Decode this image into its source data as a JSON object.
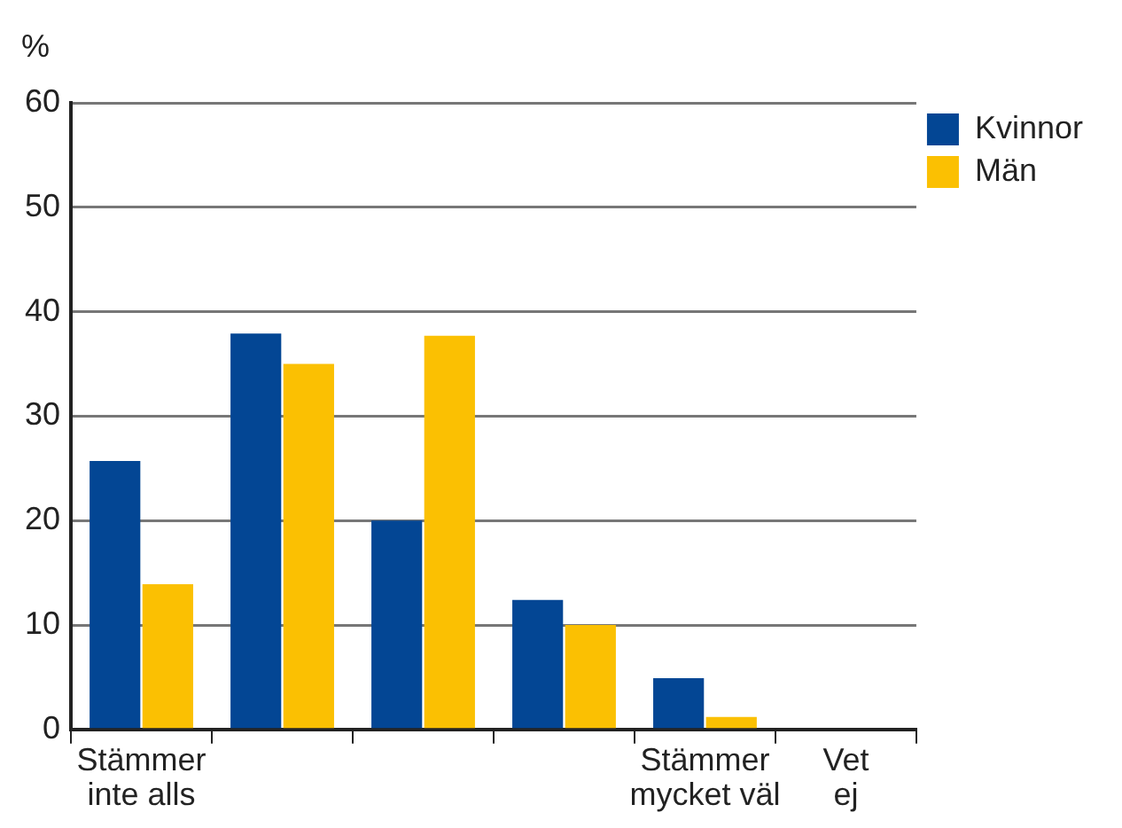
{
  "chart_data": {
    "type": "bar",
    "ylabel": "%",
    "categories": [
      "Stämmer inte alls",
      null,
      null,
      null,
      "Stämmer mycket väl",
      "Vet ej"
    ],
    "series": [
      {
        "name": "Kvinnor",
        "color": "#034694",
        "values": [
          25.7,
          37.9,
          20.0,
          12.4,
          4.9,
          0
        ]
      },
      {
        "name": "Män",
        "color": "#fbc002",
        "values": [
          13.9,
          35.0,
          37.7,
          10.0,
          1.2,
          0
        ]
      }
    ],
    "ylim": [
      0,
      60
    ],
    "yticks": [
      0,
      10,
      20,
      30,
      40,
      50,
      60
    ],
    "grid": "y",
    "legend": "top right"
  }
}
